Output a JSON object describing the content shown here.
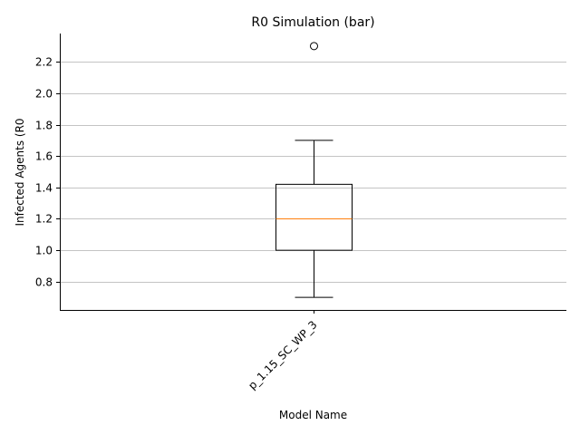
{
  "chart_data": {
    "type": "box",
    "title": "R0 Simulation (bar)",
    "xlabel": "Model Name",
    "ylabel": "Infected Agents (R0",
    "ylim": [
      0.62,
      2.38
    ],
    "yticks": [
      0.8,
      1.0,
      1.2,
      1.4,
      1.6,
      1.8,
      2.0,
      2.2
    ],
    "ytick_labels": [
      "0.8",
      "1.0",
      "1.2",
      "1.4",
      "1.6",
      "1.8",
      "2.0",
      "2.2"
    ],
    "grid": "y",
    "categories": [
      "p_1.15_SC_WP_3"
    ],
    "boxes": [
      {
        "name": "p_1.15_SC_WP_3",
        "whisker_low": 0.7,
        "q1": 1.0,
        "median": 1.2,
        "q3": 1.42,
        "whisker_high": 1.7,
        "outliers": [
          2.3
        ]
      }
    ],
    "colors": {
      "box": "#000000",
      "median": "#ff7f0e",
      "grid": "#b0b0b0",
      "axis": "#000000"
    }
  }
}
